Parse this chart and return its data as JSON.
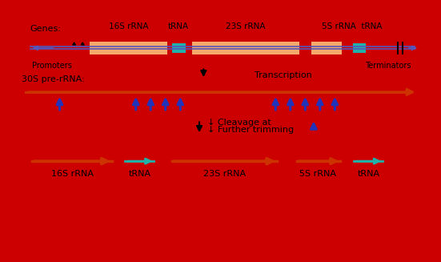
{
  "bg_color": "#ffffff",
  "border_color": "#cc0000",
  "gene_line_color": "#5555bb",
  "rrna_box_color": "#f5a96a",
  "trna_box_color": "#20b2aa",
  "pre_rrna_line_color": "#cc3300",
  "blue_arrow_color": "#2233bb",
  "orange_arrow_color": "#cc3300",
  "teal_arrow_color": "#20b2aa",
  "text_color": "#000000",
  "title_gene": "Genes:",
  "title_30s": "30S pre-rRNA:",
  "label_promoters": "Promoters",
  "label_terminators": "Terminators",
  "label_transcription": "Transcription",
  "label_cleavage": "↓ Cleavage at",
  "label_trimming": "↓ Further trimming"
}
